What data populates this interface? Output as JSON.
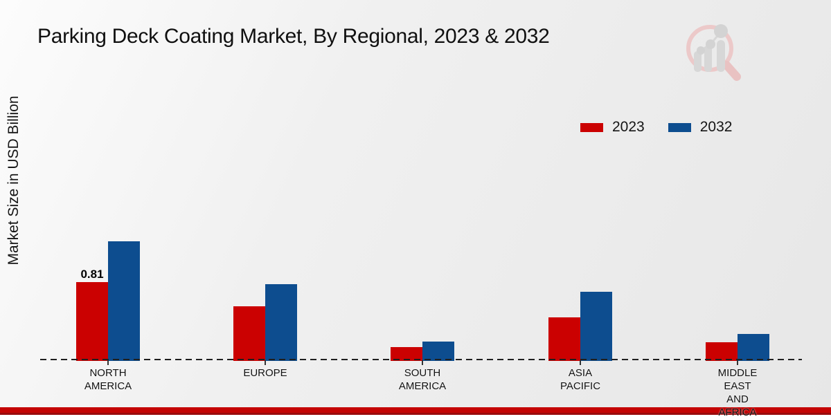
{
  "title": "Parking Deck Coating Market, By Regional, 2023 & 2032",
  "y_axis_label": "Market Size in USD Billion",
  "watermark_icon": "magnifier-bar-chart-logo",
  "colors": {
    "series_2023": "#cb0101",
    "series_2032": "#0d4d8f",
    "footer_band": "#c40404",
    "footer_band_edge": "#9a0b0d",
    "background_light": "#fcfcfc",
    "background_dark": "#e7e7e7"
  },
  "legend": {
    "position": "upper right",
    "items": [
      {
        "label": "2023",
        "color": "#cb0101"
      },
      {
        "label": "2032",
        "color": "#0d4d8f"
      }
    ]
  },
  "chart_data": {
    "type": "bar",
    "title": "Parking Deck Coating Market, By Regional, 2023 & 2032",
    "xlabel": "",
    "ylabel": "Market Size in USD Billion",
    "grid": false,
    "ylim": [
      0,
      1.4
    ],
    "categories": [
      "NORTH AMERICA",
      "EUROPE",
      "SOUTH AMERICA",
      "ASIA PACIFIC",
      "MIDDLE EAST AND AFRICA"
    ],
    "categories_display": [
      "NORTH\nAMERICA",
      "EUROPE",
      "SOUTH\nAMERICA",
      "ASIA\nPACIFIC",
      "MIDDLE\nEAST\nAND\nAFRICA"
    ],
    "series": [
      {
        "name": "2023",
        "color": "#cb0101",
        "values": [
          0.81,
          0.56,
          0.14,
          0.45,
          0.19
        ]
      },
      {
        "name": "2032",
        "color": "#0d4d8f",
        "values": [
          1.23,
          0.79,
          0.2,
          0.71,
          0.28
        ]
      }
    ],
    "annotations": [
      {
        "category": "NORTH AMERICA",
        "series": "2023",
        "text": "0.81"
      }
    ]
  }
}
